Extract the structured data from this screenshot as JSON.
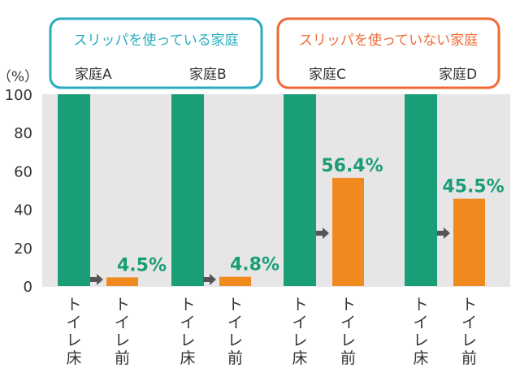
{
  "chart_data": {
    "type": "bar",
    "y_unit_label": "（%）",
    "ylim": [
      0,
      100
    ],
    "y_ticks": [
      0,
      20,
      40,
      60,
      80,
      100
    ],
    "grid": false,
    "groups": [
      {
        "name": "スリッパを使っている家庭",
        "color": "#29acc0",
        "households": [
          "家庭A",
          "家庭B"
        ]
      },
      {
        "name": "スリッパを使っていない家庭",
        "color": "#ef6a34",
        "households": [
          "家庭C",
          "家庭D"
        ]
      }
    ],
    "series": [
      {
        "name": "トイレ床",
        "color": "#1a9e77"
      },
      {
        "name": "トイレ前",
        "color": "#f0891e"
      }
    ],
    "categories": [
      "家庭A",
      "家庭B",
      "家庭C",
      "家庭D"
    ],
    "values": {
      "toilet_floor": [
        100,
        100,
        100,
        100
      ],
      "toilet_front": [
        4.5,
        4.8,
        56.4,
        45.5
      ]
    },
    "data_labels": [
      "4.5%",
      "4.8%",
      "56.4%",
      "45.5%"
    ],
    "x_labels": [
      "トイレ床",
      "トイレ前"
    ]
  }
}
